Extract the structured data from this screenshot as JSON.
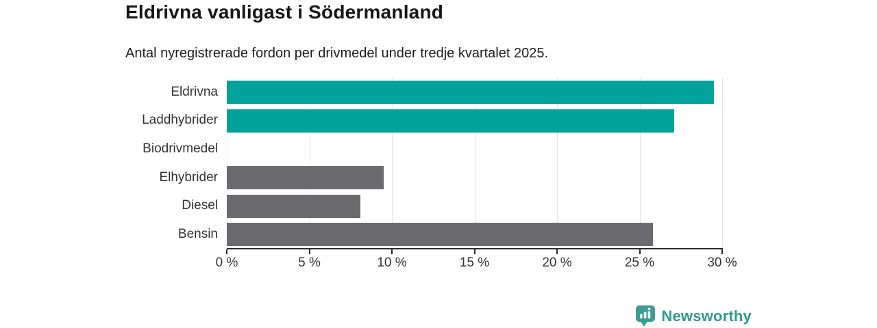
{
  "header": {
    "title": "Eldrivna vanligast i Södermanland",
    "subtitle": "Antal nyregistrerade fordon per drivmedel under tredje kvartalet 2025."
  },
  "chart_data": {
    "type": "bar",
    "orientation": "horizontal",
    "title": "Eldrivna vanligast i Södermanland",
    "subtitle": "Antal nyregistrerade fordon per drivmedel under tredje kvartalet 2025.",
    "categories": [
      "Eldrivna",
      "Laddhybrider",
      "Biodrivmedel",
      "Elhybrider",
      "Diesel",
      "Bensin"
    ],
    "values": [
      29.5,
      27.1,
      0,
      9.5,
      8.1,
      25.8
    ],
    "unit": "%",
    "xlim": [
      0,
      30
    ],
    "x_tick_step": 5,
    "x_tick_labels": [
      "0 %",
      "5 %",
      "10 %",
      "15 %",
      "20 %",
      "25 %",
      "30 %"
    ],
    "grid": "vertical-gridlines",
    "legend": "none",
    "highlight_color": "#00a29a",
    "default_color": "#6a6a6f",
    "bar_colors": [
      "#00a29a",
      "#00a29a",
      "#00a29a",
      "#6a6a6f",
      "#6a6a6f",
      "#6a6a6f"
    ],
    "gridline_color": "#e3e3e3",
    "axis_color": "#2b2b2b"
  },
  "branding": {
    "logo_text": "Newsworthy",
    "logo_color": "#2f9a92",
    "logo_icon": "bar-chart-pin-icon"
  }
}
